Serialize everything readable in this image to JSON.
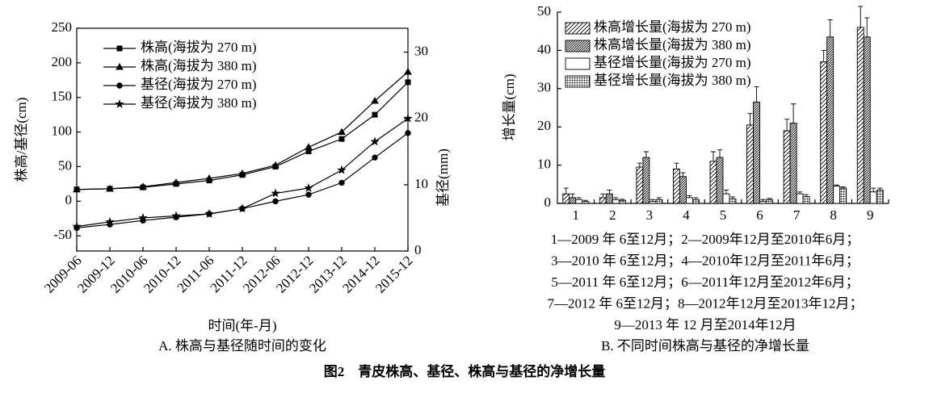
{
  "chart_data": [
    {
      "type": "line",
      "subtitle": "A. 株高与基径随时间的变化",
      "ylabel": "株高/基径(cm)",
      "y2label": "基径(mm)",
      "xlabel": "时间(年-月)",
      "categories": [
        "2009-06",
        "2009-12",
        "2010-06",
        "2010-12",
        "2011-06",
        "2011-12",
        "2012-06",
        "2012-12",
        "2013-12",
        "2014-12",
        "2015-12"
      ],
      "ylim": [
        -72,
        250
      ],
      "yticks": [
        -50,
        0,
        50,
        100,
        150,
        200,
        250
      ],
      "y2lim": [
        0,
        33.6
      ],
      "y2ticks": [
        0,
        10,
        20,
        30
      ],
      "series": [
        {
          "name": "株高(海拔为 270 m)",
          "marker": "square",
          "color": "#000000",
          "values": [
            17,
            18,
            20,
            25,
            30,
            38,
            50,
            72,
            90,
            125,
            172
          ]
        },
        {
          "name": "株高(海拔为 380 m)",
          "marker": "triangle",
          "color": "#000000",
          "values": [
            17,
            18,
            21,
            27,
            33,
            40,
            52,
            78,
            100,
            145,
            187
          ]
        },
        {
          "name": "基径(海拔为 270 m)",
          "marker": "circle",
          "color": "#000000",
          "axis": "y2",
          "values": [
            3.5,
            4.0,
            4.6,
            5.1,
            5.6,
            6.4,
            7.5,
            8.5,
            10.3,
            14.1,
            17.8
          ]
        },
        {
          "name": "基径(海拔为 380 m)",
          "marker": "star",
          "color": "#000000",
          "axis": "y2",
          "values": [
            3.7,
            4.4,
            5.0,
            5.3,
            5.6,
            6.4,
            8.7,
            9.5,
            12.2,
            16.5,
            20.0
          ]
        }
      ]
    },
    {
      "type": "bar",
      "subtitle": "B. 不同时间株高与基径的净增长量",
      "ylabel": "增长量(cm)",
      "categories": [
        "1",
        "2",
        "3",
        "4",
        "5",
        "6",
        "7",
        "8",
        "9"
      ],
      "ylim": [
        0,
        50
      ],
      "yticks": [
        0,
        10,
        20,
        30,
        40,
        50
      ],
      "series": [
        {
          "name": "株高增长量(海拔为 270 m)",
          "hatch": "diagonal",
          "color": "#000000",
          "values": [
            2.5,
            1.5,
            9.5,
            9,
            11,
            20.5,
            19,
            37,
            46
          ],
          "errors": [
            1.5,
            1,
            1,
            1.5,
            2.5,
            3,
            3,
            3,
            5.5
          ]
        },
        {
          "name": "株高增长量(海拔为 380 m)",
          "hatch": "dense-diagonal",
          "color": "#000000",
          "values": [
            1.5,
            2.5,
            12,
            7,
            12,
            26.5,
            21,
            43.5,
            43.5
          ],
          "errors": [
            1,
            1,
            1.5,
            1,
            2,
            4,
            5,
            4.5,
            5
          ]
        },
        {
          "name": "基径增长量(海拔为 270 m)",
          "hatch": "none",
          "color": "#000000",
          "values": [
            1,
            1,
            0.5,
            1.5,
            2.5,
            0.5,
            2.5,
            4.5,
            3
          ],
          "errors": [
            0.5,
            0.5,
            0.5,
            0.5,
            1,
            0.5,
            0.5,
            0.3,
            1
          ]
        },
        {
          "name": "基径增长量(海拔为 380 m)",
          "hatch": "grid",
          "color": "#000000",
          "values": [
            0.5,
            0.8,
            1,
            1,
            1.2,
            1,
            1.8,
            4,
            3.5
          ],
          "errors": [
            0.3,
            0.3,
            0.5,
            0.5,
            0.5,
            0.3,
            0.5,
            0.3,
            0.5
          ]
        }
      ],
      "notes": [
        "1—2009 年 6至12月；2—2009年12月至2010年6月；",
        "3—2010 年 6至12月；4—2010年12月至2011年6月；",
        "5—2011 年 6至12月；6—2011年12月至2012年6月；",
        "7—2012 年 6至12月；8—2012年12月至2013年12月；",
        "9—2013 年 12 月至2014年12月"
      ]
    }
  ],
  "caption": "图2　青皮株高、基径、株高与基径的净增长量"
}
